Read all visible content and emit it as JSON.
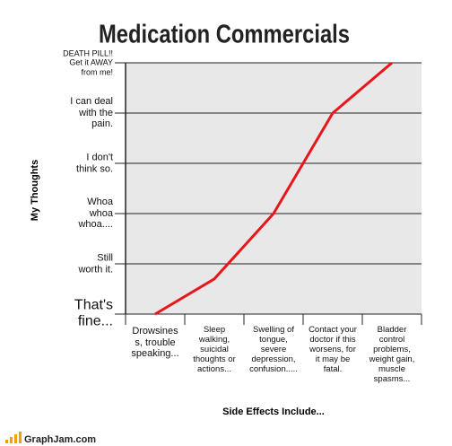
{
  "chart_data": {
    "type": "line",
    "title": "Medication Commercials",
    "x_label": "Side Effects Include...",
    "y_label": "My Thoughts",
    "categories": [
      "Drowsines\ns, trouble\nspeaking...",
      "Sleep\nwalking,\nsuicidal\nthoughts or\nactions...",
      "Swelling of\ntongue,\nsevere\ndepression,\nconfusion.....",
      "Contact your\ndoctor if this\nworsens, for\nit may be\nfatal.",
      "Bladder\ncontrol\nproblems,\nweight gain,\nmuscle\nspasms..."
    ],
    "values": [
      0,
      0.7,
      2,
      4,
      5
    ],
    "color": "#e8161b",
    "ylim": [
      0,
      5
    ],
    "yticks": [
      {
        "value": 0,
        "label": "That's\nfine..."
      },
      {
        "value": 1,
        "label": "Still\nworth it."
      },
      {
        "value": 2,
        "label": "Whoa\nwhoa\nwhoa...."
      },
      {
        "value": 3,
        "label": "I don't\nthink so."
      },
      {
        "value": 4,
        "label": "I can deal\nwith the\npain."
      },
      {
        "value": 5,
        "label": "DEATH PILL!!\nGet it AWAY\nfrom me!"
      }
    ],
    "grid": true,
    "footer": "GraphJam.com"
  }
}
